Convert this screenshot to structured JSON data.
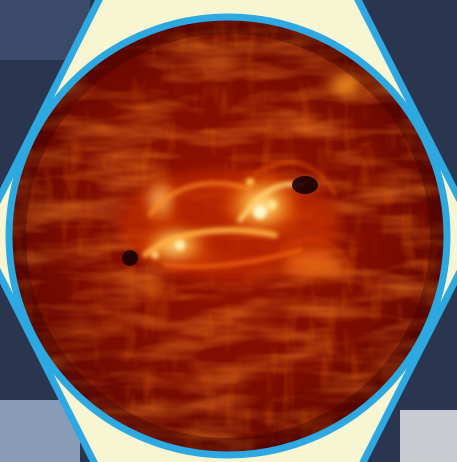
{
  "colors": {
    "hexagon_fill": "#f8f6d2",
    "hexagon_border": "#2ea8e0",
    "circle_border": "#2ea8e0",
    "sun_dark": "#4a0000",
    "sun_mid": "#8a0e00",
    "sun_bright": "#e04a00",
    "sun_hot": "#ffd27a",
    "corner_background": "#2a3550"
  },
  "image": {
    "subject": "solar-active-region",
    "icon": "sun-closeup-image"
  }
}
